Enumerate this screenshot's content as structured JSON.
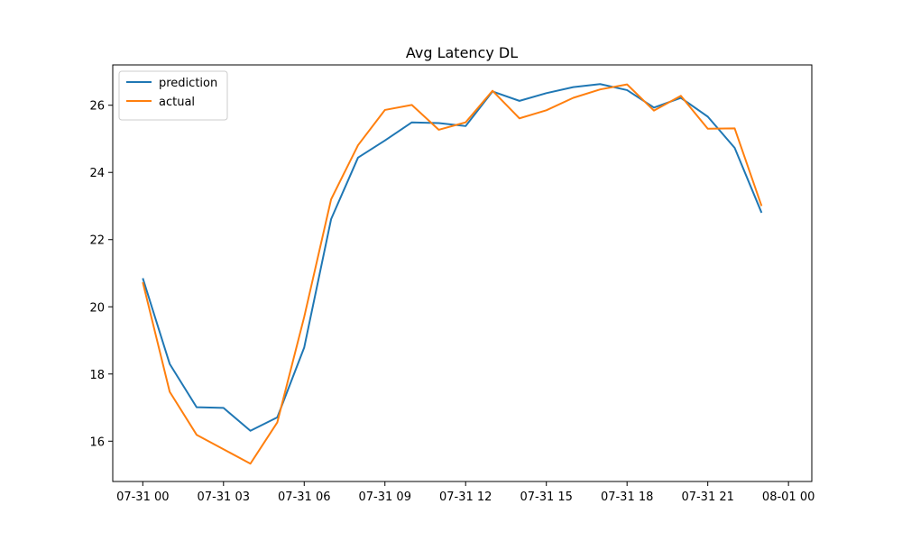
{
  "chart_data": {
    "type": "line",
    "title": "Avg Latency DL",
    "xlabel": "",
    "ylabel": "",
    "x": [
      "07-31 00:00",
      "07-31 01:00",
      "07-31 02:00",
      "07-31 03:00",
      "07-31 04:00",
      "07-31 05:00",
      "07-31 06:00",
      "07-31 07:00",
      "07-31 08:00",
      "07-31 09:00",
      "07-31 10:00",
      "07-31 11:00",
      "07-31 12:00",
      "07-31 13:00",
      "07-31 14:00",
      "07-31 15:00",
      "07-31 16:00",
      "07-31 17:00",
      "07-31 18:00",
      "07-31 19:00",
      "07-31 20:00",
      "07-31 21:00",
      "07-31 22:00",
      "07-31 23:00"
    ],
    "xlim": [
      "07-30 22:53",
      "08-01 00:52"
    ],
    "xticks": [
      "07-31 00",
      "07-31 03",
      "07-31 06",
      "07-31 09",
      "07-31 12",
      "07-31 15",
      "07-31 18",
      "07-31 21",
      "08-01 00"
    ],
    "ylim": [
      14.8,
      27.2
    ],
    "yticks": [
      16,
      18,
      20,
      22,
      24,
      26
    ],
    "grid": false,
    "legend_position": "top-left",
    "series": [
      {
        "name": "prediction",
        "color": "#1f77b4",
        "values": [
          20.85,
          18.3,
          17.01,
          16.99,
          16.31,
          16.71,
          18.79,
          22.61,
          24.44,
          24.95,
          25.49,
          25.47,
          25.38,
          26.41,
          26.13,
          26.36,
          26.54,
          26.63,
          26.45,
          25.93,
          26.22,
          25.66,
          24.73,
          22.8
        ]
      },
      {
        "name": "actual",
        "color": "#ff7f0e",
        "values": [
          20.73,
          17.47,
          16.19,
          15.76,
          15.33,
          16.56,
          19.7,
          23.2,
          24.81,
          25.86,
          26.01,
          25.27,
          25.49,
          26.43,
          25.61,
          25.85,
          26.22,
          26.47,
          26.62,
          25.84,
          26.28,
          25.3,
          25.31,
          23.0
        ]
      }
    ]
  }
}
